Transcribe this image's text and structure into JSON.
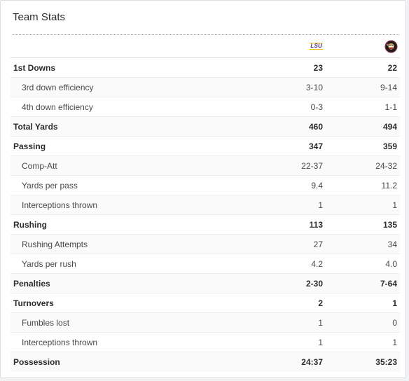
{
  "card": {
    "title": "Team Stats"
  },
  "teams": {
    "away_logo_text": "LSU",
    "away_color": "#4b2a86",
    "away_accent": "#f3c200",
    "home_logo_icon": "fsu-seminole-head-icon",
    "home_color": "#782f40"
  },
  "stats": [
    {
      "label": "1st Downs",
      "away": "23",
      "home": "22",
      "level": "main"
    },
    {
      "label": "3rd down efficiency",
      "away": "3-10",
      "home": "9-14",
      "level": "sub"
    },
    {
      "label": "4th down efficiency",
      "away": "0-3",
      "home": "1-1",
      "level": "sub"
    },
    {
      "label": "Total Yards",
      "away": "460",
      "home": "494",
      "level": "main"
    },
    {
      "label": "Passing",
      "away": "347",
      "home": "359",
      "level": "main"
    },
    {
      "label": "Comp-Att",
      "away": "22-37",
      "home": "24-32",
      "level": "sub"
    },
    {
      "label": "Yards per pass",
      "away": "9.4",
      "home": "11.2",
      "level": "sub"
    },
    {
      "label": "Interceptions thrown",
      "away": "1",
      "home": "1",
      "level": "sub"
    },
    {
      "label": "Rushing",
      "away": "113",
      "home": "135",
      "level": "main"
    },
    {
      "label": "Rushing Attempts",
      "away": "27",
      "home": "34",
      "level": "sub"
    },
    {
      "label": "Yards per rush",
      "away": "4.2",
      "home": "4.0",
      "level": "sub"
    },
    {
      "label": "Penalties",
      "away": "2-30",
      "home": "7-64",
      "level": "main"
    },
    {
      "label": "Turnovers",
      "away": "2",
      "home": "1",
      "level": "main"
    },
    {
      "label": "Fumbles lost",
      "away": "1",
      "home": "0",
      "level": "sub"
    },
    {
      "label": "Interceptions thrown",
      "away": "1",
      "home": "1",
      "level": "sub"
    },
    {
      "label": "Possession",
      "away": "24:37",
      "home": "35:23",
      "level": "main"
    }
  ]
}
